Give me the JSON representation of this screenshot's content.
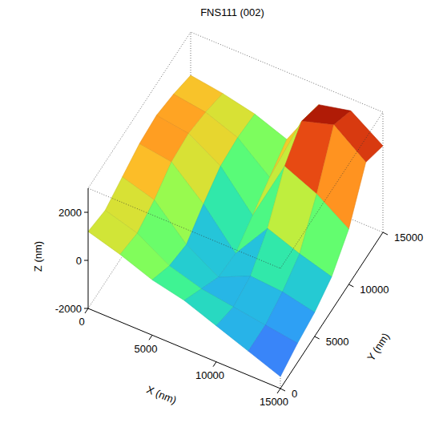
{
  "chart_data": {
    "type": "surface",
    "title": "FNS111 (002)",
    "x_label": "X (nm)",
    "y_label": "Y (nm)",
    "z_label": "Z (nm)",
    "x": [
      0,
      2500,
      5000,
      7500,
      10000,
      12500,
      15000
    ],
    "y": [
      0,
      2500,
      5000,
      7500,
      10000,
      12500,
      15000
    ],
    "z": [
      [
        1200,
        800,
        300,
        0,
        -500,
        -1000,
        -1500
      ],
      [
        1000,
        600,
        -200,
        -600,
        -800,
        -1000,
        -1200
      ],
      [
        1300,
        900,
        -400,
        -1200,
        -600,
        -700,
        -1000
      ],
      [
        1600,
        1400,
        200,
        -1300,
        300,
        -200,
        -600
      ],
      [
        1700,
        1500,
        700,
        -800,
        1800,
        1200,
        300
      ],
      [
        1500,
        1300,
        800,
        -300,
        2600,
        3000,
        2000
      ],
      [
        1200,
        1000,
        700,
        200,
        2200,
        2500,
        1600
      ]
    ],
    "xlim": [
      0,
      15000
    ],
    "ylim": [
      0,
      15000
    ],
    "zlim": [
      -2000,
      3000
    ],
    "xticks": [
      0,
      5000,
      10000,
      15000
    ],
    "yticks": [
      0,
      5000,
      10000,
      15000
    ],
    "zticks": [
      -2000,
      0,
      2000
    ]
  }
}
